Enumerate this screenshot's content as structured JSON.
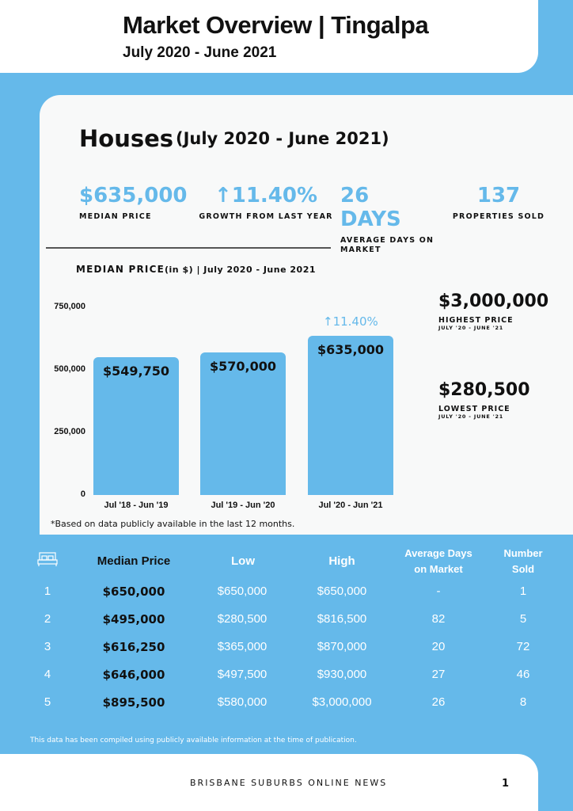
{
  "header": {
    "title": "Market Overview | Tingalpa",
    "subtitle": "July 2020 - June 2021"
  },
  "houses": {
    "title": "Houses",
    "period": "(July 2020 - June 2021)"
  },
  "stats": [
    {
      "value": "$635,000",
      "label": "MEDIAN PRICE"
    },
    {
      "value": "↑11.40%",
      "label": "GROWTH FROM LAST YEAR"
    },
    {
      "value": "26 DAYS",
      "label": "AVERAGE DAYS ON MARKET"
    },
    {
      "value": "137",
      "label": "PROPERTIES SOLD"
    }
  ],
  "chart_data": {
    "type": "bar",
    "title": "MEDIAN PRICE",
    "title_suffix": "(in $) | July 2020 - June 2021",
    "categories": [
      "Jul '18 - Jun '19",
      "Jul '19 - Jun '20",
      "Jul '20 - Jun '21"
    ],
    "values": [
      549750,
      570000,
      635000
    ],
    "data_labels": [
      "$549,750",
      "$570,000",
      "$635,000"
    ],
    "yticks": [
      "0",
      "250,000",
      "500,000",
      "750,000"
    ],
    "ylim": [
      0,
      750000
    ],
    "grid": false,
    "color": "#65b9ea",
    "annotation": "↑11.40%"
  },
  "highest": {
    "value": "$3,000,000",
    "label": "HIGHEST PRICE",
    "period": "JULY '20 - JUNE '21"
  },
  "lowest": {
    "value": "$280,500",
    "label": "LOWEST PRICE",
    "period": "JULY '20 - JUNE '21"
  },
  "note": "*Based on data publicly available in the last 12 months.",
  "table": {
    "icon": "bed-icon",
    "headers": [
      "Median Price",
      "Low",
      "High",
      "Average Days on Market",
      "Number Sold"
    ],
    "rows": [
      [
        "1",
        "$650,000",
        "$650,000",
        "$650,000",
        "-",
        "1"
      ],
      [
        "2",
        "$495,000",
        "$280,500",
        "$816,500",
        "82",
        "5"
      ],
      [
        "3",
        "$616,250",
        "$365,000",
        "$870,000",
        "20",
        "72"
      ],
      [
        "4",
        "$646,000",
        "$497,500",
        "$930,000",
        "27",
        "46"
      ],
      [
        "5",
        "$895,500",
        "$580,000",
        "$3,000,000",
        "26",
        "8"
      ]
    ]
  },
  "disclaimer": "This data has been compiled using publicly available information at the time of publication.",
  "footer": {
    "name": "BRISBANE SUBURBS ONLINE NEWS",
    "page": "1"
  }
}
